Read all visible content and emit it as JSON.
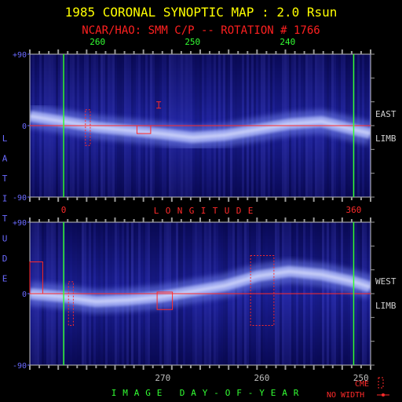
{
  "title": "1985 CORONAL SYNOPTIC MAP : 2.0 Rsun",
  "subtitle": "NCAR/HAO: SMM C/P -- ROTATION # 1766",
  "side_labels": {
    "latitude_letters": [
      "L",
      "A",
      "T",
      "I",
      "T",
      "U",
      "D",
      "E"
    ],
    "east": [
      "EAST",
      "LIMB"
    ],
    "west": [
      "WEST",
      "LIMB"
    ]
  },
  "legend": {
    "cme": "CME",
    "no_width": "NO WIDTH"
  },
  "colors": {
    "title": "#ffff00",
    "subtitle": "#ff2020",
    "green": "#33ff33",
    "red": "#ff2a2a",
    "axis_blue": "#6a6aff",
    "panel_frame": "#bfbfbf"
  },
  "chart_data": [
    {
      "type": "heatmap",
      "name": "east-limb-panel",
      "y_ticks": [
        "+90",
        "0",
        "-90"
      ],
      "ylim": [
        -90,
        90
      ],
      "xlim": [
        -42,
        381
      ],
      "x_ticks_top": [
        {
          "label": "260",
          "value": 42
        },
        {
          "label": "250",
          "value": 160
        },
        {
          "label": "240",
          "value": 278
        }
      ],
      "x_ticks_bottom": [
        {
          "label": "0",
          "value": 0
        },
        {
          "label": "360",
          "value": 360
        }
      ],
      "xlabel_letters": [
        "L",
        "O",
        "N",
        "G",
        "I",
        "T",
        "U",
        "D",
        "E"
      ],
      "green_lines": [
        0,
        360
      ],
      "streamer_band": [
        {
          "x": -42,
          "lat": 12
        },
        {
          "x": 0,
          "lat": 5
        },
        {
          "x": 40,
          "lat": -2
        },
        {
          "x": 80,
          "lat": -6
        },
        {
          "x": 120,
          "lat": -10
        },
        {
          "x": 160,
          "lat": -15
        },
        {
          "x": 200,
          "lat": -12
        },
        {
          "x": 240,
          "lat": -5
        },
        {
          "x": 280,
          "lat": 2
        },
        {
          "x": 320,
          "lat": 5
        },
        {
          "x": 360,
          "lat": -5
        },
        {
          "x": 381,
          "lat": -10
        }
      ],
      "cme_boxes": [
        {
          "x0": 27,
          "x1": 33,
          "lat0": -25,
          "lat1": 20,
          "dashed": true
        },
        {
          "x0": 91,
          "x1": 108,
          "lat0": -10,
          "lat1": 0,
          "dashed": false
        }
      ],
      "no_width_markers": [
        {
          "x": 118,
          "lat0": 22,
          "lat1": 30
        }
      ]
    },
    {
      "type": "heatmap",
      "name": "west-limb-panel",
      "y_ticks": [
        "+90",
        "0",
        "-90"
      ],
      "ylim": [
        -90,
        90
      ],
      "xlim": [
        -42,
        381
      ],
      "x_ticks_bottom": [
        {
          "label": "270",
          "value": 123
        },
        {
          "label": "260",
          "value": 246
        },
        {
          "label": "250",
          "value": 369
        }
      ],
      "xlabel_letters": [
        "I",
        "M",
        "A",
        "G",
        "E",
        "",
        "D",
        "A",
        "Y",
        "-",
        "O",
        "F",
        "-",
        "Y",
        "E",
        "A",
        "R"
      ],
      "green_lines": [
        0,
        360
      ],
      "streamer_band": [
        {
          "x": -42,
          "lat": 0
        },
        {
          "x": 0,
          "lat": -4
        },
        {
          "x": 40,
          "lat": -10
        },
        {
          "x": 80,
          "lat": -8
        },
        {
          "x": 120,
          "lat": -4
        },
        {
          "x": 160,
          "lat": 3
        },
        {
          "x": 200,
          "lat": 10
        },
        {
          "x": 240,
          "lat": 22
        },
        {
          "x": 280,
          "lat": 28
        },
        {
          "x": 320,
          "lat": 24
        },
        {
          "x": 360,
          "lat": 15
        },
        {
          "x": 381,
          "lat": 8
        }
      ],
      "cme_boxes": [
        {
          "x0": -42,
          "x1": -26,
          "lat0": 0,
          "lat1": 40,
          "dashed": false
        },
        {
          "x0": 6,
          "x1": 12,
          "lat0": -40,
          "lat1": 15,
          "dashed": true
        },
        {
          "x0": 116,
          "x1": 135,
          "lat0": -20,
          "lat1": 2,
          "dashed": false
        },
        {
          "x0": 232,
          "x1": 261,
          "lat0": -40,
          "lat1": 48,
          "dashed": true
        }
      ],
      "no_width_markers": []
    }
  ]
}
